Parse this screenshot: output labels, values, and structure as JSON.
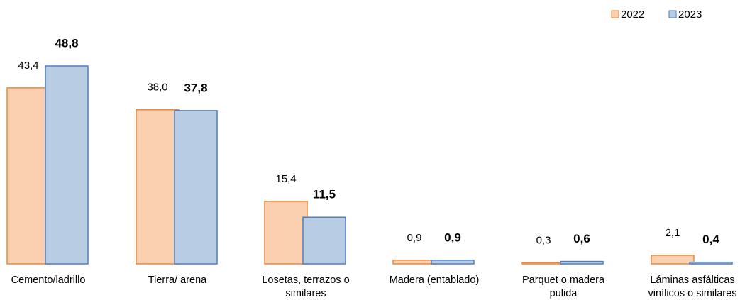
{
  "chart_data": {
    "type": "bar",
    "categories": [
      "Cemento/ladrillo",
      "Tierra/ arena",
      "Losetas, terrazos o similares",
      "Madera (entablado)",
      "Parquet o madera pulida",
      "Láminas asfálticas vinílicos o similares"
    ],
    "series": [
      {
        "name": "2022",
        "color": "#fbd0b0",
        "values": [
          43.4,
          38.0,
          15.4,
          0.9,
          0.3,
          2.1
        ],
        "value_labels": [
          "43,4",
          "38,0",
          "15,4",
          "0,9",
          "0,3",
          "2,1"
        ]
      },
      {
        "name": "2023",
        "color": "#b8cce4",
        "values": [
          48.8,
          37.8,
          11.5,
          0.9,
          0.6,
          0.4
        ],
        "value_labels": [
          "48,8",
          "37,8",
          "11,5",
          "0,9",
          "0,6",
          "0,4"
        ]
      }
    ],
    "legend": "top-right"
  }
}
